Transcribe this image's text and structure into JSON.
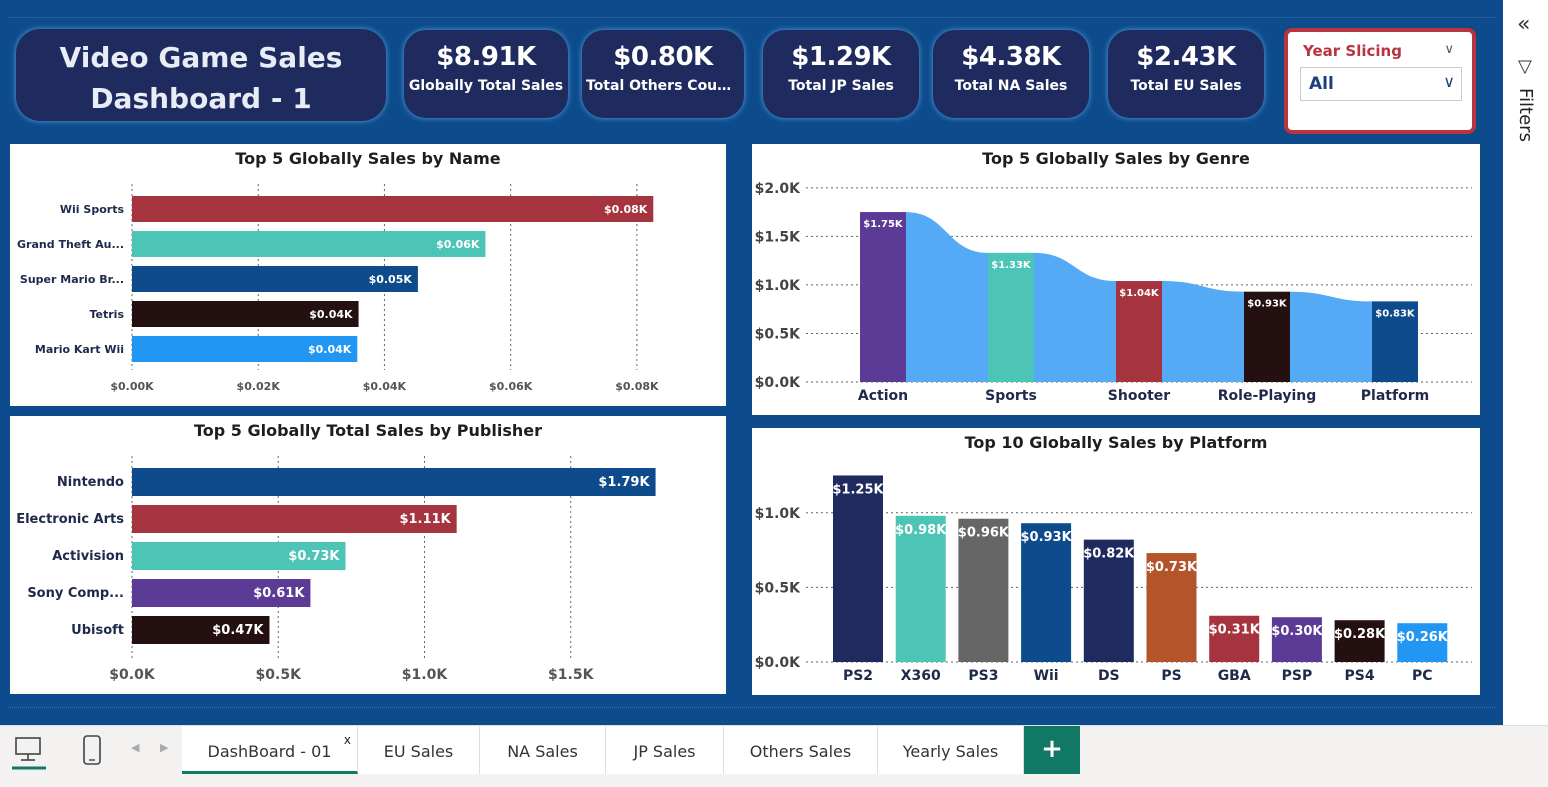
{
  "title": {
    "line1": "Video Game Sales",
    "line2": "Dashboard - 1"
  },
  "kpis": [
    {
      "value": "$8.91K",
      "label": "Globally Total Sales"
    },
    {
      "value": "$0.80K",
      "label": "Total Others Countr..."
    },
    {
      "value": "$1.29K",
      "label": "Total JP Sales"
    },
    {
      "value": "$4.38K",
      "label": "Total NA Sales"
    },
    {
      "value": "$2.43K",
      "label": "Total EU Sales"
    }
  ],
  "slicer": {
    "label": "Year Slicing",
    "value": "All"
  },
  "sidebar": {
    "filters_label": "Filters"
  },
  "colors": {
    "canvas": "#0d4b8c",
    "tile": "#1f2b5e",
    "accent_red": "#b8343f",
    "tab_green": "#117865"
  },
  "tabs": [
    {
      "label": "DashBoard - 01",
      "active": true,
      "close": "x"
    },
    {
      "label": "EU Sales"
    },
    {
      "label": "NA Sales"
    },
    {
      "label": "JP Sales"
    },
    {
      "label": "Others Sales"
    },
    {
      "label": "Yearly Sales"
    }
  ],
  "add_tab_label": "+",
  "chart_data": [
    {
      "id": "by-name",
      "type": "bar",
      "orientation": "horizontal",
      "title": "Top 5 Globally Sales by Name",
      "categories": [
        "Wii Sports",
        "Grand Theft Au...",
        "Super Mario Br...",
        "Tetris",
        "Mario Kart Wii"
      ],
      "values": [
        0.0826,
        0.056,
        0.0453,
        0.0359,
        0.0357
      ],
      "data_labels": [
        "$0.08K",
        "$0.06K",
        "$0.05K",
        "$0.04K",
        "$0.04K"
      ],
      "colors": [
        "#a5343f",
        "#4cc4b6",
        "#0d4b8c",
        "#241010",
        "#2196f3"
      ],
      "ticks": [
        0,
        0.02,
        0.04,
        0.06,
        0.08
      ],
      "tick_labels": [
        "$0.00K",
        "$0.02K",
        "$0.04K",
        "$0.06K",
        "$0.08K"
      ],
      "xlim": [
        0,
        0.09
      ],
      "grid": true
    },
    {
      "id": "by-publisher",
      "type": "bar",
      "orientation": "horizontal",
      "title": "Top 5 Globally Total Sales by Publisher",
      "categories": [
        "Nintendo",
        "Electronic Arts",
        "Activision",
        "Sony Comp...",
        "Ubisoft"
      ],
      "values": [
        1.79,
        1.11,
        0.73,
        0.61,
        0.47
      ],
      "data_labels": [
        "$1.79K",
        "$1.11K",
        "$0.73K",
        "$0.61K",
        "$0.47K"
      ],
      "colors": [
        "#0d4b8c",
        "#a5343f",
        "#4cc4b6",
        "#5b3b96",
        "#241010"
      ],
      "ticks": [
        0,
        0.5,
        1.0,
        1.5
      ],
      "tick_labels": [
        "$0.0K",
        "$0.5K",
        "$1.0K",
        "$1.5K"
      ],
      "xlim": [
        0,
        2.0
      ],
      "grid": true
    },
    {
      "id": "by-genre",
      "type": "bar",
      "title": "Top 5 Globally  Sales by Genre",
      "categories": [
        "Action",
        "Sports",
        "Shooter",
        "Role-Playing",
        "Platform"
      ],
      "values": [
        1.75,
        1.33,
        1.04,
        0.93,
        0.83
      ],
      "data_labels": [
        "$1.75K",
        "$1.33K",
        "$1.04K",
        "$0.93K",
        "$0.83K"
      ],
      "colors": [
        "#5b3b96",
        "#4cc4b6",
        "#a5343f",
        "#241010",
        "#0d4b8c"
      ],
      "ribbon_color": "#55aaf5",
      "ticks": [
        0,
        0.5,
        1.0,
        1.5,
        2.0
      ],
      "tick_labels": [
        "$0.0K",
        "$0.5K",
        "$1.0K",
        "$1.5K",
        "$2.0K"
      ],
      "ylim": [
        0,
        2.05
      ],
      "grid": true
    },
    {
      "id": "by-platform",
      "type": "bar",
      "title": "Top 10 Globally Sales by Platform",
      "categories": [
        "PS2",
        "X360",
        "PS3",
        "Wii",
        "DS",
        "PS",
        "GBA",
        "PSP",
        "PS4",
        "PC"
      ],
      "values": [
        1.25,
        0.98,
        0.96,
        0.93,
        0.82,
        0.73,
        0.31,
        0.3,
        0.28,
        0.26
      ],
      "data_labels": [
        "$1.25K",
        "$0.98K",
        "$0.96K",
        "$0.93K",
        "$0.82K",
        "$0.73K",
        "$0.31K",
        "$0.30K",
        "$0.28K",
        "$0.26K"
      ],
      "colors": [
        "#1f2b5e",
        "#4cc4b6",
        "#666666",
        "#0d4b8c",
        "#1f2b5e",
        "#b3542b",
        "#a5343f",
        "#5b3b96",
        "#241010",
        "#2196f3"
      ],
      "ticks": [
        0,
        0.5,
        1.0
      ],
      "tick_labels": [
        "$0.0K",
        "$0.5K",
        "$1.0K"
      ],
      "ylim": [
        0,
        1.3
      ],
      "grid": true
    }
  ]
}
